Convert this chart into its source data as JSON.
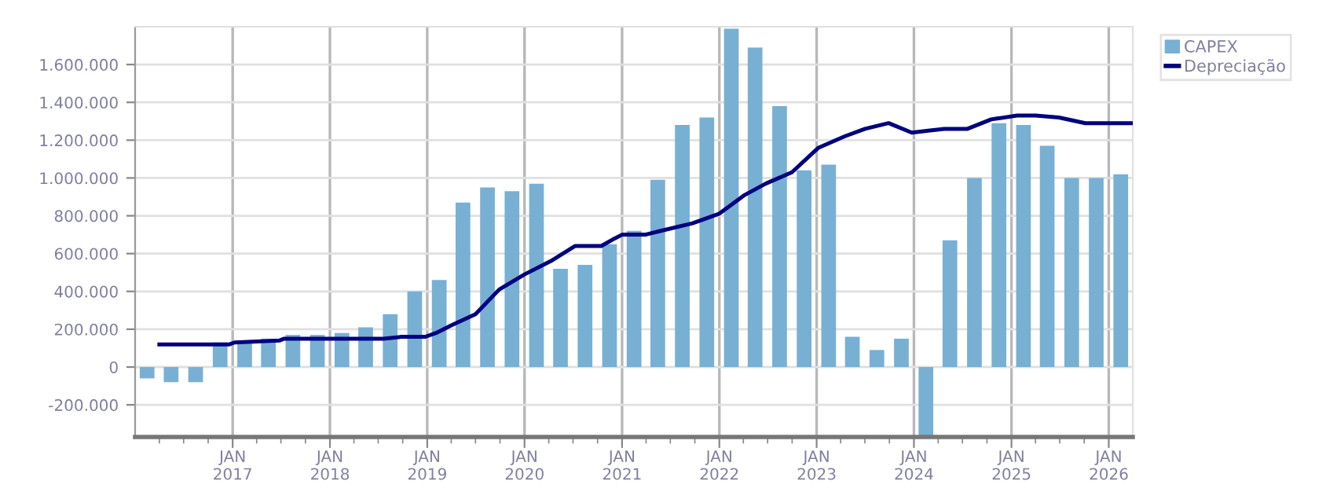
{
  "chart_data": {
    "type": "bar",
    "x": [
      "2016-02-15",
      "2016-05-15",
      "2016-08-15",
      "2016-11-15",
      "2017-02-15",
      "2017-05-15",
      "2017-08-15",
      "2017-11-15",
      "2018-02-15",
      "2018-05-15",
      "2018-08-15",
      "2018-11-15",
      "2019-02-15",
      "2019-05-15",
      "2019-08-15",
      "2019-11-15",
      "2020-02-15",
      "2020-05-15",
      "2020-08-15",
      "2020-11-15",
      "2021-02-15",
      "2021-05-15",
      "2021-08-15",
      "2021-11-15",
      "2022-02-15",
      "2022-05-15",
      "2022-08-15",
      "2022-11-15",
      "2023-02-15",
      "2023-05-15",
      "2023-08-15",
      "2023-11-15",
      "2024-02-15",
      "2024-05-15",
      "2024-08-15",
      "2024-11-15",
      "2025-02-15",
      "2025-05-15",
      "2025-08-15",
      "2025-11-15",
      "2026-02-15"
    ],
    "series": [
      {
        "name": "CAPEX",
        "color": "#77b0d3",
        "values": [
          -60000,
          -80000,
          -80000,
          130000,
          140000,
          150000,
          170000,
          170000,
          180000,
          210000,
          280000,
          400000,
          460000,
          870000,
          950000,
          930000,
          970000,
          520000,
          540000,
          650000,
          720000,
          990000,
          1280000,
          1320000,
          1790000,
          1690000,
          1380000,
          1040000,
          1070000,
          160000,
          90000,
          150000,
          -370000,
          670000,
          1000000,
          1290000,
          1280000,
          1170000,
          1000000,
          1000000,
          1020000
        ]
      },
      {
        "name": "Depreciação",
        "type": "line",
        "color": "#00007f",
        "marker": "none",
        "line_style": "solid",
        "x": [
          "2016-04-01",
          "2016-12-20",
          "2017-01-08",
          "2017-06-25",
          "2017-07-13",
          "2018-07-01",
          "2018-07-20",
          "2018-09-27",
          "2018-12-25",
          "2019-02-03",
          "2019-04-01",
          "2019-07-01",
          "2019-09-28",
          "2020-01-01",
          "2020-04-08",
          "2020-07-08",
          "2020-10-15",
          "2020-12-04",
          "2021-01-01",
          "2021-03-29",
          "2021-05-26",
          "2021-09-22",
          "2021-12-30",
          "2022-04-06",
          "2022-06-24",
          "2022-09-30",
          "2023-01-08",
          "2023-04-16",
          "2023-07-02",
          "2023-09-28",
          "2023-12-24",
          "2024-02-24",
          "2024-04-24",
          "2024-07-20",
          "2024-10-17",
          "2025-01-22",
          "2025-04-01",
          "2025-06-28",
          "2025-10-05",
          "2026-03-28"
        ],
        "values": [
          120000,
          120000,
          130000,
          140000,
          150000,
          150000,
          150000,
          160000,
          160000,
          180000,
          220000,
          280000,
          410000,
          490000,
          560000,
          640000,
          640000,
          680000,
          700000,
          700000,
          720000,
          760000,
          810000,
          910000,
          970000,
          1030000,
          1160000,
          1220000,
          1260000,
          1290000,
          1240000,
          1250000,
          1260000,
          1260000,
          1310000,
          1330000,
          1330000,
          1320000,
          1290000,
          1290000
        ]
      }
    ],
    "xlim": [
      "2016-01-01",
      "2026-04-01"
    ],
    "xticks": [
      {
        "value": "2016-04-01",
        "label": null
      },
      {
        "value": "2016-07-01",
        "label": null
      },
      {
        "value": "2016-10-01",
        "label": null
      },
      {
        "value": "2017-01-01",
        "label": "JAN\n2017"
      },
      {
        "value": "2017-04-01",
        "label": null
      },
      {
        "value": "2017-07-01",
        "label": null
      },
      {
        "value": "2017-10-01",
        "label": null
      },
      {
        "value": "2018-01-01",
        "label": "JAN\n2018"
      },
      {
        "value": "2018-04-01",
        "label": null
      },
      {
        "value": "2018-07-01",
        "label": null
      },
      {
        "value": "2018-10-01",
        "label": null
      },
      {
        "value": "2019-01-01",
        "label": "JAN\n2019"
      },
      {
        "value": "2019-04-01",
        "label": null
      },
      {
        "value": "2019-07-01",
        "label": null
      },
      {
        "value": "2019-10-01",
        "label": null
      },
      {
        "value": "2020-01-01",
        "label": "JAN\n2020"
      },
      {
        "value": "2020-04-01",
        "label": null
      },
      {
        "value": "2020-07-01",
        "label": null
      },
      {
        "value": "2020-10-01",
        "label": null
      },
      {
        "value": "2021-01-01",
        "label": "JAN\n2021"
      },
      {
        "value": "2021-04-01",
        "label": null
      },
      {
        "value": "2021-07-01",
        "label": null
      },
      {
        "value": "2021-10-01",
        "label": null
      },
      {
        "value": "2022-01-01",
        "label": "JAN\n2022"
      },
      {
        "value": "2022-04-01",
        "label": null
      },
      {
        "value": "2022-07-01",
        "label": null
      },
      {
        "value": "2022-10-01",
        "label": null
      },
      {
        "value": "2023-01-01",
        "label": "JAN\n2023"
      },
      {
        "value": "2023-04-01",
        "label": null
      },
      {
        "value": "2023-07-01",
        "label": null
      },
      {
        "value": "2023-10-01",
        "label": null
      },
      {
        "value": "2024-01-01",
        "label": "JAN\n2024"
      },
      {
        "value": "2024-04-01",
        "label": null
      },
      {
        "value": "2024-07-01",
        "label": null
      },
      {
        "value": "2024-10-01",
        "label": null
      },
      {
        "value": "2025-01-01",
        "label": "JAN\n2025"
      },
      {
        "value": "2025-04-01",
        "label": null
      },
      {
        "value": "2025-07-01",
        "label": null
      },
      {
        "value": "2025-10-01",
        "label": null
      },
      {
        "value": "2026-01-01",
        "label": "JAN\n2026"
      }
    ],
    "ylim": [
      -370000,
      1800000
    ],
    "yticks": [
      {
        "value": -200000,
        "label": "-200.000"
      },
      0,
      {
        "value": 200000,
        "label": "200.000"
      },
      {
        "value": 400000,
        "label": "400.000"
      },
      {
        "value": 600000,
        "label": "600.000"
      },
      {
        "value": 800000,
        "label": "800.000"
      },
      {
        "value": 1000000,
        "label": "1.000.000"
      },
      {
        "value": 1200000,
        "label": "1.200.000"
      },
      {
        "value": 1400000,
        "label": "1.400.000"
      },
      {
        "value": 1600000,
        "label": "1.600.000"
      }
    ],
    "grid": true,
    "legend": "top right"
  }
}
